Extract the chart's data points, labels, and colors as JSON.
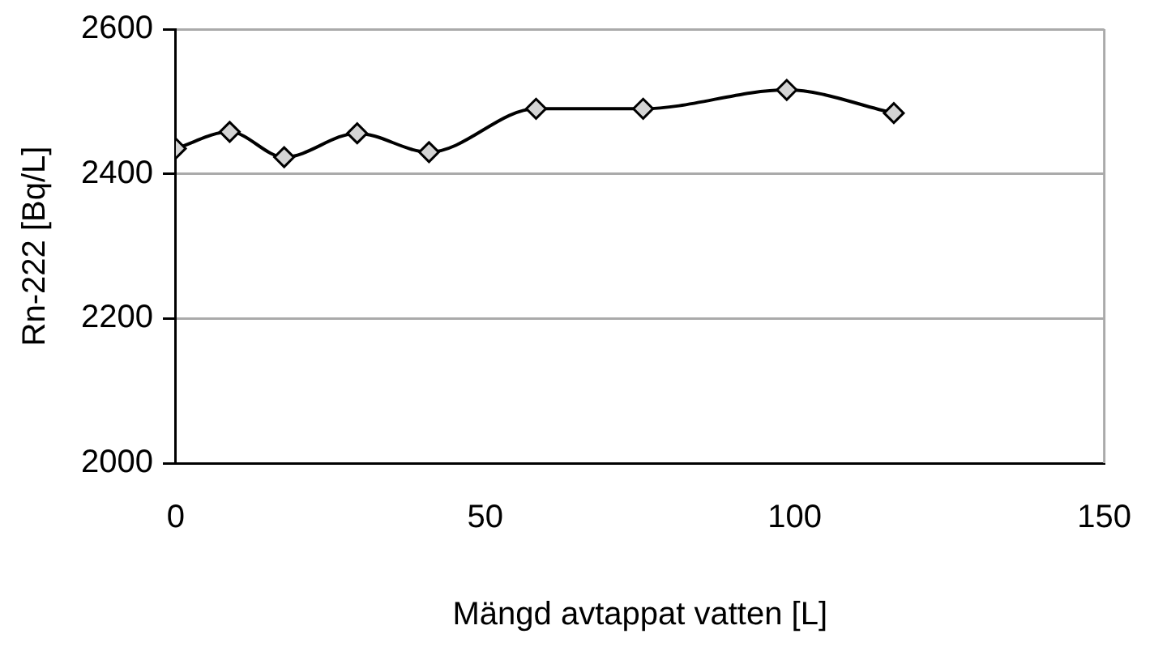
{
  "chart_data": {
    "type": "line",
    "xlabel": "Mängd avtappat vatten [L]",
    "ylabel": "Rn-222 [Bq/L]",
    "x": [
      0,
      8.7,
      17.5,
      29.3,
      40.9,
      58.2,
      75.5,
      98.7,
      116
    ],
    "series": [
      {
        "color": "#000000",
        "values": [
          2435,
          2458,
          2423,
          2456,
          2430,
          2490,
          2490,
          2516,
          2484
        ]
      }
    ],
    "xlim": [
      0,
      150
    ],
    "xticks": [
      0,
      50,
      100,
      150
    ],
    "ylim": [
      2000,
      2600
    ],
    "yticks": [
      2000,
      2200,
      2400,
      2600
    ],
    "grid": "y",
    "legend": false,
    "marker": "diamond",
    "line_style": "solid"
  }
}
